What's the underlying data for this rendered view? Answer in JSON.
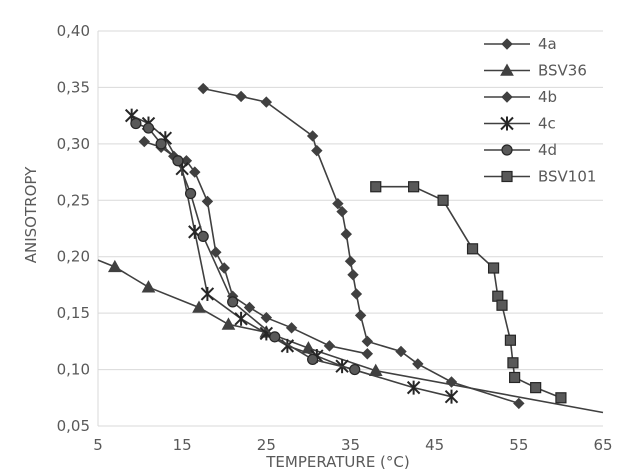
{
  "chart_data": {
    "type": "line",
    "xlabel": "TEMPERATURE (°C)",
    "ylabel": "ANISOTROPY",
    "xlim": [
      5,
      65
    ],
    "ylim": [
      0.05,
      0.4
    ],
    "x_ticks": [
      "5",
      "15",
      "25",
      "35",
      "45",
      "55",
      "65"
    ],
    "y_ticks": [
      "0,05",
      "0,10",
      "0,15",
      "0,20",
      "0,25",
      "0,30",
      "0,35",
      "0,40"
    ],
    "grid": "horizontal",
    "legend_position": "top-right",
    "series": [
      {
        "name": "4a",
        "marker": "diamond",
        "x": [
          17.5,
          22,
          25,
          30.5,
          31,
          33.5,
          34,
          34.5,
          35,
          35.3,
          35.7,
          36.2,
          37,
          41,
          43,
          47,
          55
        ],
        "y": [
          0.349,
          0.342,
          0.337,
          0.307,
          0.294,
          0.247,
          0.24,
          0.22,
          0.196,
          0.184,
          0.167,
          0.148,
          0.125,
          0.116,
          0.105,
          0.089,
          0.07
        ]
      },
      {
        "name": "BSV36",
        "marker": "triangle",
        "x": [
          5,
          7,
          11,
          17,
          20.5,
          25,
          30,
          38,
          65
        ],
        "y": [
          0.197,
          0.191,
          0.173,
          0.155,
          0.14,
          0.133,
          0.119,
          0.099,
          0.062
        ]
      },
      {
        "name": "4b",
        "marker": "diamond",
        "x": [
          10.5,
          12.5,
          14,
          15.5,
          16.5,
          18,
          19,
          20,
          21,
          23,
          25,
          28,
          32.5,
          37
        ],
        "y": [
          0.302,
          0.297,
          0.289,
          0.285,
          0.275,
          0.249,
          0.204,
          0.19,
          0.165,
          0.155,
          0.146,
          0.137,
          0.121,
          0.114
        ]
      },
      {
        "name": "4c",
        "marker": "star",
        "x": [
          9,
          11,
          13,
          15,
          16.5,
          18,
          22,
          25,
          27.5,
          31,
          34,
          42.5,
          47
        ],
        "y": [
          0.325,
          0.318,
          0.305,
          0.278,
          0.222,
          0.167,
          0.145,
          0.132,
          0.121,
          0.112,
          0.103,
          0.084,
          0.076
        ]
      },
      {
        "name": "4d",
        "marker": "circle",
        "x": [
          9.5,
          11,
          12.5,
          14.5,
          16,
          17.5,
          21,
          26,
          30.5,
          35.5
        ],
        "y": [
          0.318,
          0.314,
          0.3,
          0.285,
          0.256,
          0.218,
          0.16,
          0.129,
          0.109,
          0.1
        ]
      },
      {
        "name": "BSV101",
        "marker": "square",
        "x": [
          38,
          42.5,
          46,
          49.5,
          52,
          52.5,
          53,
          54,
          54.3,
          54.5,
          57,
          60
        ],
        "y": [
          0.262,
          0.262,
          0.25,
          0.207,
          0.19,
          0.165,
          0.157,
          0.126,
          0.106,
          0.093,
          0.084,
          0.075
        ]
      }
    ]
  },
  "colors": {
    "series_line": "#404040",
    "grid": "#d9d9d9",
    "axis_text": "#595959"
  }
}
